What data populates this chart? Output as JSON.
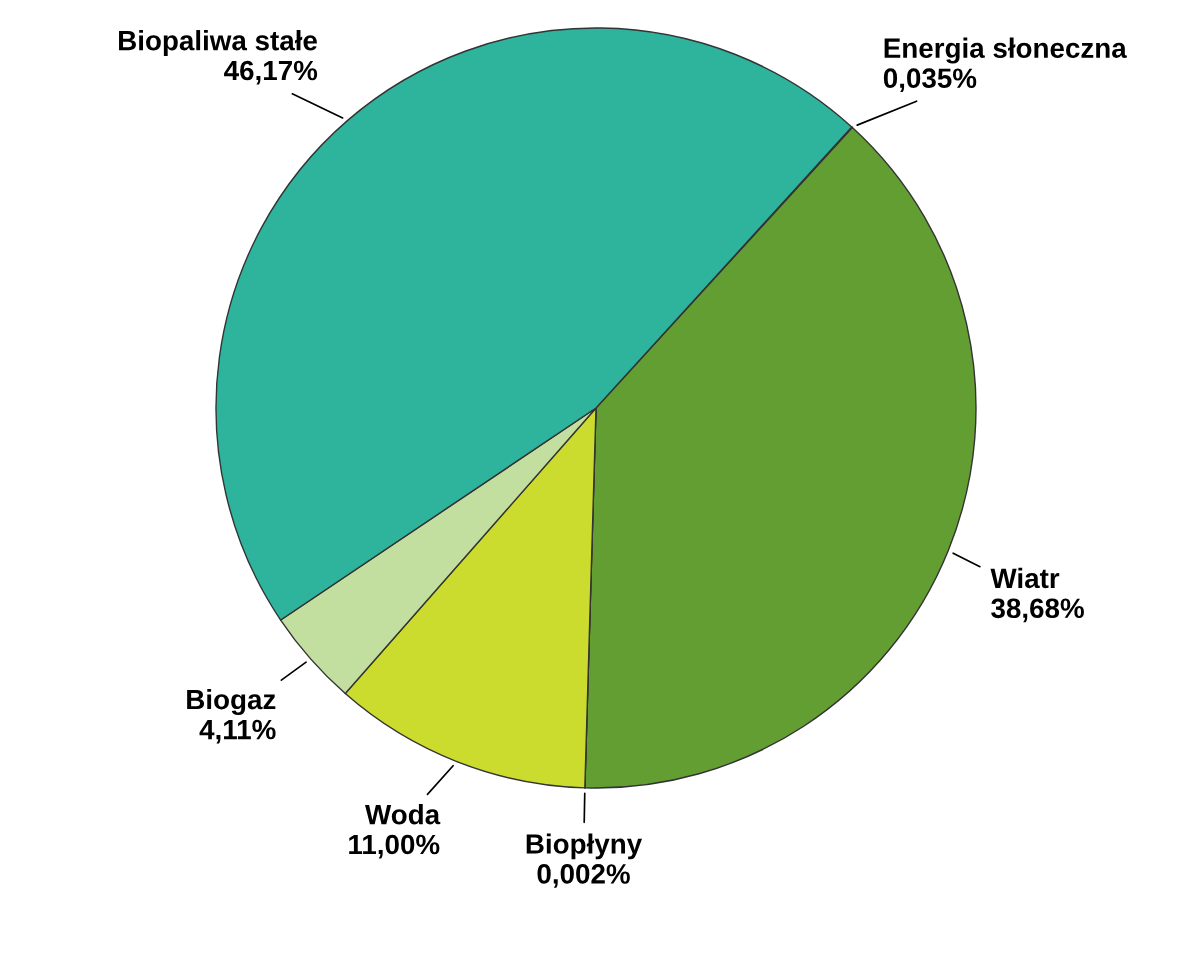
{
  "chart_data": {
    "type": "pie",
    "categories": [
      "Energia słoneczna",
      "Wiatr",
      "Biopłyny",
      "Woda",
      "Biogaz",
      "Biopaliwa stałe"
    ],
    "values": [
      0.035,
      38.68,
      0.002,
      11.0,
      4.11,
      46.17
    ],
    "value_labels": [
      "0,035%",
      "38,68%",
      "0,002%",
      "11,00%",
      "4,11%",
      "46,17%"
    ],
    "colors": [
      "#1e7d4c",
      "#639e33",
      "#2db39a",
      "#ccdc2e",
      "#c2dfa0",
      "#2eb49d"
    ],
    "legend": false
  }
}
